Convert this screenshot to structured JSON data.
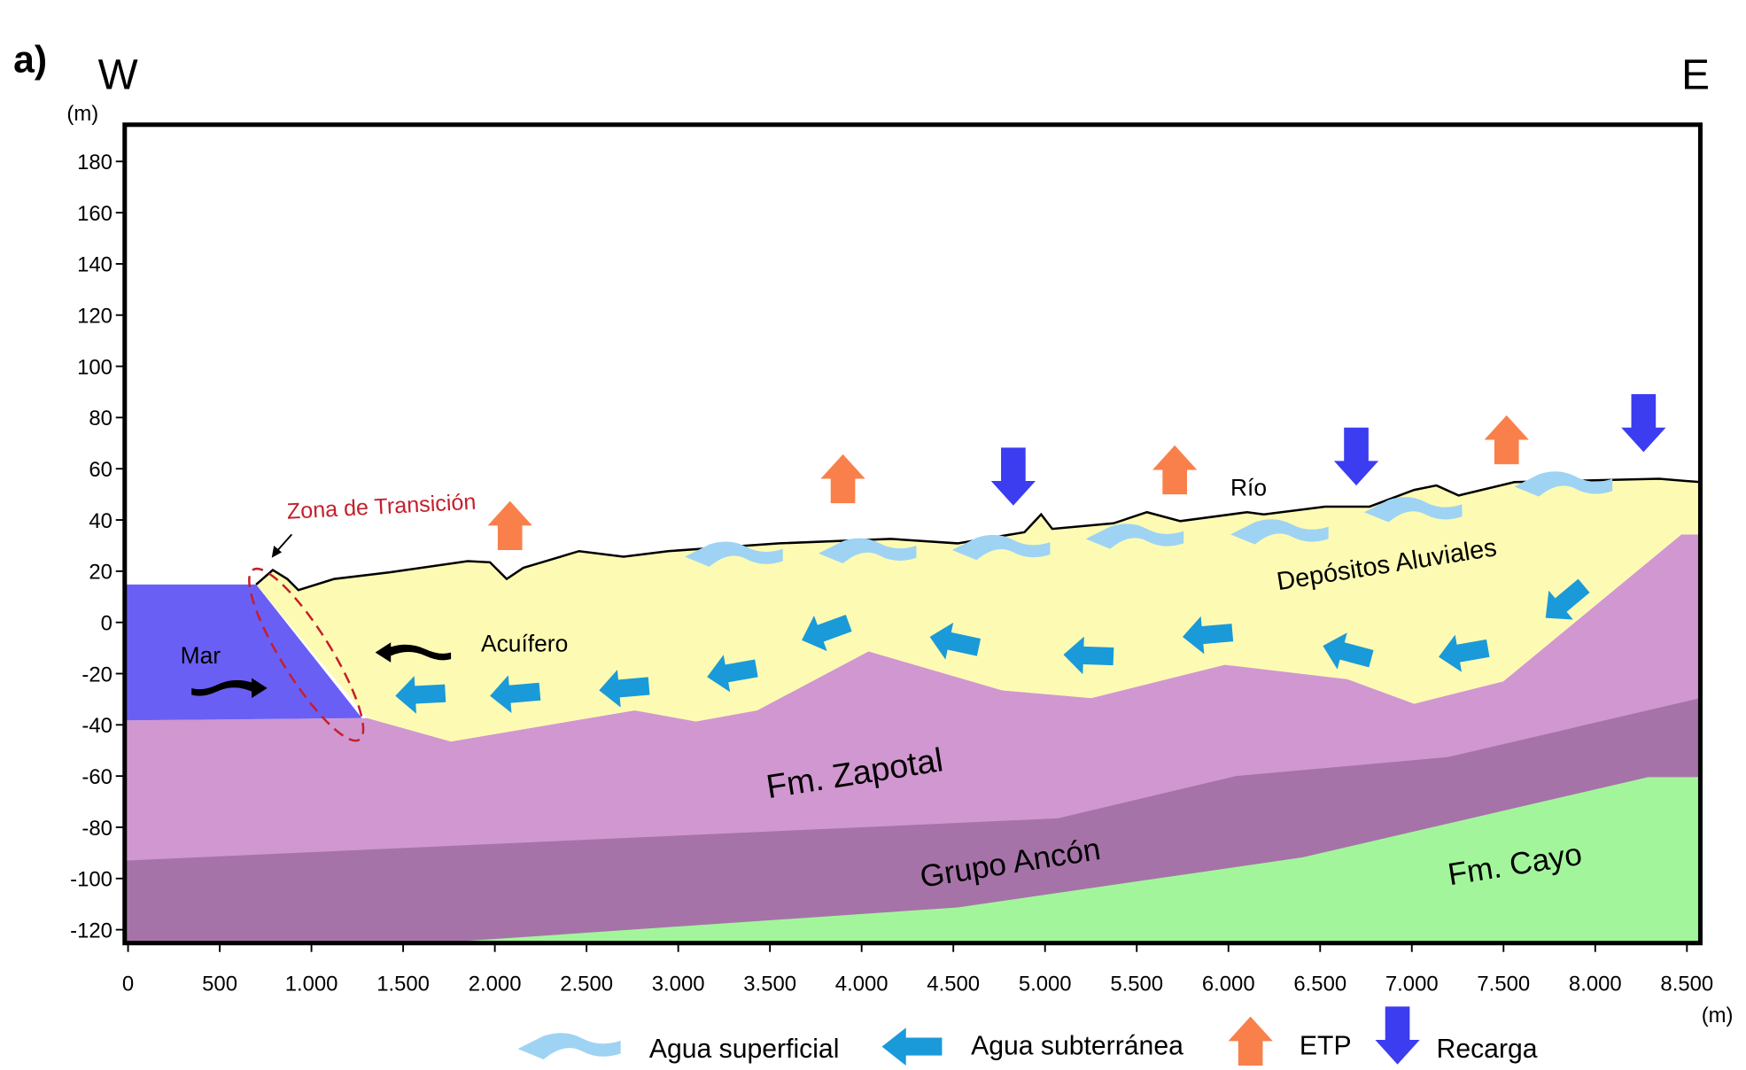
{
  "panel_label": "a)",
  "direction_west": "W",
  "direction_east": "E",
  "y_axis_unit": "(m)",
  "x_axis_unit": "(m)",
  "y_ticks": [
    "180",
    "160",
    "140",
    "120",
    "100",
    "80",
    "60",
    "40",
    "20",
    "0",
    "-20",
    "-40",
    "-60",
    "-80",
    "-100",
    "-120"
  ],
  "x_ticks": [
    "0",
    "500",
    "1.000",
    "1.500",
    "2.000",
    "2.500",
    "3.000",
    "3.500",
    "4.000",
    "4.500",
    "5.000",
    "5.500",
    "6.000",
    "6.500",
    "7.000",
    "7.500",
    "8.000",
    "8.500"
  ],
  "labels": {
    "transition_zone": "Zona de Transición",
    "sea": "Mar",
    "aquifer": "Acuífero",
    "alluvial": "Depósitos Aluviales",
    "river": "Río",
    "zapotal": "Fm. Zapotal",
    "ancon": "Grupo Ancón",
    "cayo": "Fm. Cayo"
  },
  "legend": [
    "Agua superficial",
    "Agua subterránea",
    "ETP",
    "Recarga"
  ]
}
